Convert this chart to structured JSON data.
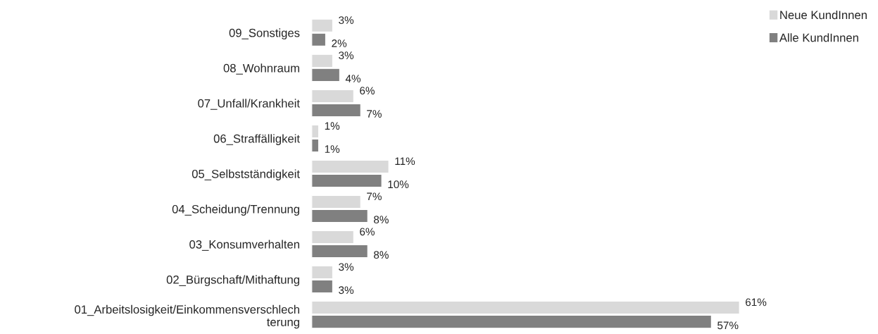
{
  "chart_data": {
    "type": "bar",
    "orientation": "horizontal",
    "categories": [
      "09_Sonstiges",
      "08_Wohnraum",
      "07_Unfall/Krankheit",
      "06_Straffälligkeit",
      "05_Selbstständigkeit",
      "04_Scheidung/Trennung",
      "03_Konsumverhalten",
      "02_Bürgschaft/Mithaftung",
      "01_Arbeitslosigkeit/Einkommensverschlechterung"
    ],
    "series": [
      {
        "name": "Neue KundInnen",
        "color": "#d9d9d9",
        "values": [
          3,
          3,
          6,
          1,
          11,
          7,
          6,
          3,
          61
        ],
        "value_labels": [
          "3%",
          "3%",
          "6%",
          "1%",
          "11%",
          "7%",
          "6%",
          "3%",
          "61%"
        ]
      },
      {
        "name": "Alle KundInnen",
        "color": "#808080",
        "values": [
          2,
          4,
          7,
          1,
          10,
          8,
          8,
          3,
          57
        ],
        "value_labels": [
          "2%",
          "4%",
          "7%",
          "1%",
          "10%",
          "8%",
          "8%",
          "3%",
          "57%"
        ]
      }
    ],
    "legend": "top right",
    "grid": false
  }
}
